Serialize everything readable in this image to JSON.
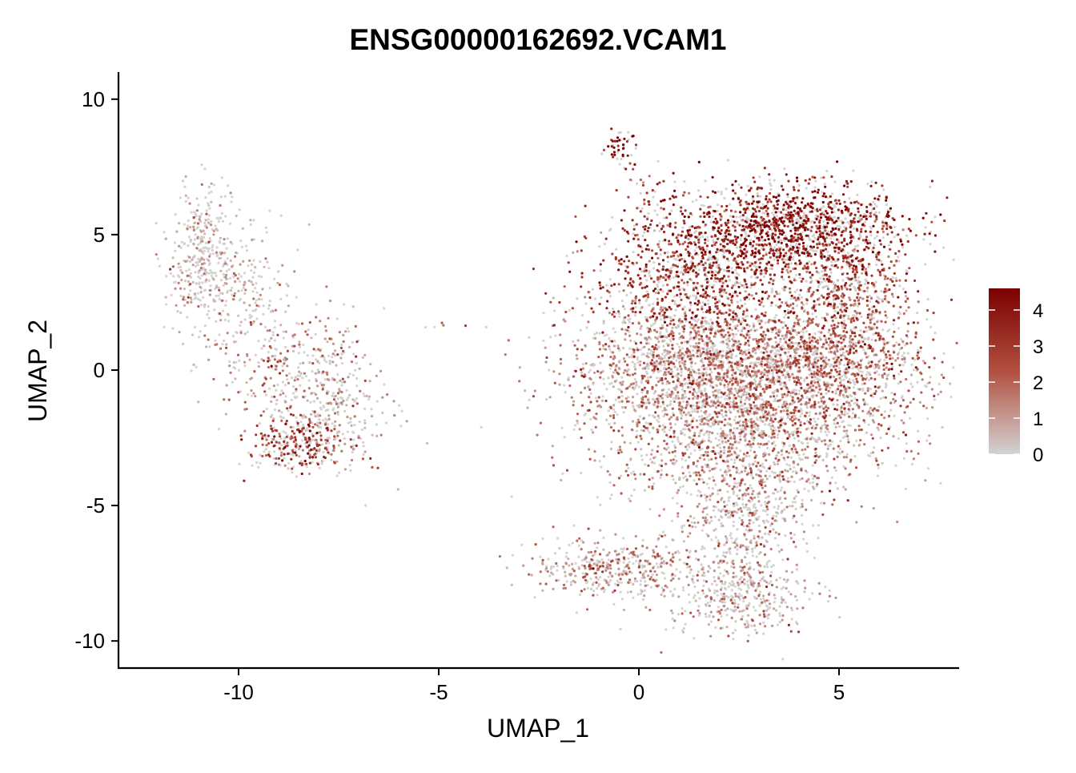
{
  "chart_data": {
    "type": "scatter",
    "title": "ENSG00000162692.VCAM1",
    "xlabel": "UMAP_1",
    "ylabel": "UMAP_2",
    "xlim": [
      -13,
      8
    ],
    "ylim": [
      -11,
      11
    ],
    "x_ticks": [
      -10,
      -5,
      0,
      5
    ],
    "x_tick_labels": [
      "-10",
      "-5",
      "0",
      "5"
    ],
    "y_ticks": [
      -10,
      -5,
      0,
      5,
      10
    ],
    "y_tick_labels": [
      "-10",
      "-5",
      "0",
      "5",
      "10"
    ],
    "grid": false,
    "legend": {
      "type": "colorbar",
      "placement": "right",
      "min": 0,
      "max": 4.6,
      "ticks": [
        0,
        1,
        2,
        3,
        4
      ],
      "tick_labels": [
        "0",
        "1",
        "2",
        "3",
        "4"
      ],
      "low_color": "#d3d3d3",
      "high_color": "#7a0000"
    },
    "clusters": [
      {
        "cx": -10.9,
        "cy": 4.2,
        "sx": 0.45,
        "sy": 1.3,
        "expr": 0.3,
        "n": 320
      },
      {
        "cx": -10.0,
        "cy": 3.0,
        "sx": 0.7,
        "sy": 1.2,
        "expr": 0.5,
        "n": 200
      },
      {
        "cx": -8.6,
        "cy": 0.2,
        "sx": 0.9,
        "sy": 1.2,
        "expr": 1.2,
        "n": 300
      },
      {
        "cx": -7.6,
        "cy": -1.6,
        "sx": 0.7,
        "sy": 1.1,
        "expr": 0.6,
        "n": 260
      },
      {
        "cx": -8.5,
        "cy": -2.7,
        "sx": 0.6,
        "sy": 0.5,
        "expr": 2.8,
        "n": 220
      },
      {
        "cx": -0.45,
        "cy": 8.3,
        "sx": 0.2,
        "sy": 0.35,
        "expr": 4.2,
        "n": 45
      },
      {
        "cx": 0.2,
        "cy": 5.9,
        "sx": 0.35,
        "sy": 0.8,
        "expr": 3.0,
        "n": 60
      },
      {
        "cx": 3.8,
        "cy": 5.2,
        "sx": 1.4,
        "sy": 0.9,
        "expr": 3.7,
        "n": 1300
      },
      {
        "cx": 1.6,
        "cy": 3.3,
        "sx": 1.4,
        "sy": 1.2,
        "expr": 3.0,
        "n": 900
      },
      {
        "cx": 5.3,
        "cy": 2.5,
        "sx": 0.8,
        "sy": 1.5,
        "expr": 2.3,
        "n": 700
      },
      {
        "cx": 1.5,
        "cy": 0.1,
        "sx": 1.6,
        "sy": 1.3,
        "expr": 1.3,
        "n": 1600
      },
      {
        "cx": 4.2,
        "cy": -0.2,
        "sx": 1.6,
        "sy": 1.2,
        "expr": 1.7,
        "n": 1400
      },
      {
        "cx": 2.6,
        "cy": -2.8,
        "sx": 1.7,
        "sy": 1.1,
        "expr": 1.3,
        "n": 1000
      },
      {
        "cx": 2.7,
        "cy": -5.5,
        "sx": 0.8,
        "sy": 0.9,
        "expr": 0.9,
        "n": 350
      },
      {
        "cx": -0.5,
        "cy": -7.3,
        "sx": 1.0,
        "sy": 0.55,
        "expr": 1.1,
        "n": 420
      },
      {
        "cx": 2.6,
        "cy": -8.2,
        "sx": 0.9,
        "sy": 0.8,
        "expr": 0.7,
        "n": 420
      },
      {
        "cx": -4.6,
        "cy": 1.65,
        "sx": 0.35,
        "sy": 0.1,
        "expr": 2.5,
        "n": 6
      }
    ]
  }
}
